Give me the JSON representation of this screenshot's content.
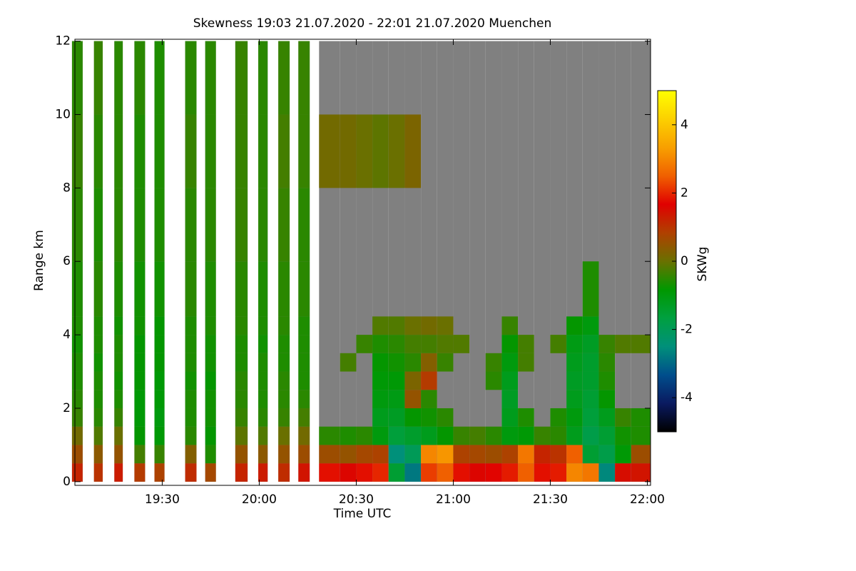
{
  "chart_data": {
    "type": "heatmap",
    "title": "Skewness   19:03 21.07.2020 - 22:01 21.07.2020 Muenchen",
    "x_label": "Time UTC",
    "y_label": "Range km",
    "colorbar_label": "SKWg",
    "xlim": [
      1143,
      1321
    ],
    "xticks": [
      {
        "value": 1170,
        "label": "19:30"
      },
      {
        "value": 1200,
        "label": "20:00"
      },
      {
        "value": 1230,
        "label": "20:30"
      },
      {
        "value": 1260,
        "label": "21:00"
      },
      {
        "value": 1290,
        "label": "21:30"
      },
      {
        "value": 1320,
        "label": "22:00"
      }
    ],
    "ylim": [
      -0.1,
      12.05
    ],
    "yticks": [
      0,
      2,
      4,
      6,
      8,
      10,
      12
    ],
    "clim": [
      -5,
      5
    ],
    "cticks": [
      -4,
      -2,
      0,
      2,
      4
    ],
    "colormap": [
      "#000000",
      "#0a1a60",
      "#004e8c",
      "#00907a",
      "#00a040",
      "#009800",
      "#6a7000",
      "#b04000",
      "#e00000",
      "#f06000",
      "#f8a000",
      "#fcd000",
      "#ffff00"
    ],
    "nodata_color": "#808080",
    "y_edges": [
      0,
      0.5,
      1,
      1.5,
      2,
      2.5,
      3,
      3.5,
      4,
      4.5,
      6,
      8,
      10,
      12
    ],
    "columns": [
      {
        "start": 1142.1,
        "end": 1145.4,
        "values": [
          1.2,
          0.6,
          0.1,
          -0.4,
          -0.5,
          -0.6,
          -0.6,
          -0.7,
          -0.6,
          -0.6,
          -0.5,
          -0.4,
          -0.5
        ]
      },
      {
        "start": 1148.9,
        "end": 1151.6,
        "values": [
          1.0,
          0.4,
          -0.2,
          -0.5,
          -0.6,
          -0.6,
          -0.7,
          -0.6,
          -0.6,
          -0.5,
          -0.6,
          -0.5,
          -0.4
        ]
      },
      {
        "start": 1155.2,
        "end": 1157.8,
        "values": [
          1.3,
          0.5,
          0.0,
          -0.4,
          -0.6,
          -0.7,
          -0.6,
          -0.6,
          -0.7,
          -0.6,
          -0.5,
          -0.5,
          -0.5
        ]
      },
      {
        "start": 1161.4,
        "end": 1164.7,
        "values": [
          0.9,
          -0.3,
          -0.8,
          -0.9,
          -0.9,
          -0.8,
          -0.8,
          -0.8,
          -0.7,
          -0.7,
          -0.6,
          -0.6,
          -0.5
        ]
      },
      {
        "start": 1167.6,
        "end": 1170.7,
        "values": [
          0.8,
          -0.4,
          -0.9,
          -1.0,
          -0.9,
          -0.9,
          -0.8,
          -0.8,
          -0.8,
          -0.7,
          -0.6,
          -0.6,
          -0.6
        ]
      },
      {
        "start": 1177.1,
        "end": 1180.6,
        "values": [
          1.1,
          0.3,
          -0.5,
          -0.6,
          -0.6,
          -0.7,
          -0.6,
          -0.6,
          -0.6,
          -0.5,
          -0.5,
          -0.4,
          -0.5
        ]
      },
      {
        "start": 1183.3,
        "end": 1186.6,
        "values": [
          0.7,
          -0.6,
          -0.8,
          -0.7,
          -0.7,
          -0.8,
          -0.7,
          -0.7,
          -0.6,
          -0.6,
          -0.5,
          -0.5,
          -0.5
        ]
      },
      {
        "start": 1192.6,
        "end": 1196.4,
        "values": [
          1.2,
          0.5,
          -0.1,
          -0.4,
          -0.5,
          -0.5,
          -0.6,
          -0.6,
          -0.5,
          -0.5,
          -0.4,
          -0.4,
          -0.4
        ]
      },
      {
        "start": 1199.7,
        "end": 1202.6,
        "values": [
          1.3,
          0.4,
          -0.2,
          -0.5,
          -0.6,
          -0.6,
          -0.6,
          -0.7,
          -0.6,
          -0.6,
          -0.5,
          -0.5,
          -0.5
        ]
      },
      {
        "start": 1205.9,
        "end": 1209.4,
        "values": [
          1.1,
          0.5,
          0.0,
          -0.4,
          -0.5,
          -0.5,
          -0.6,
          -0.6,
          -0.5,
          -0.5,
          -0.4,
          -0.3,
          -0.4
        ]
      },
      {
        "start": 1212.1,
        "end": 1215.6,
        "values": [
          1.4,
          0.6,
          0.1,
          -0.3,
          -0.5,
          -0.6,
          -0.6,
          -0.6,
          -0.6,
          -0.5,
          -0.5,
          -0.4,
          -0.4
        ]
      },
      {
        "start": 1218.5,
        "end": 1225,
        "values": [
          1.8,
          0.6,
          -0.5,
          null,
          null,
          null,
          null,
          null,
          null,
          null,
          null,
          0.1,
          null
        ]
      },
      {
        "start": 1225,
        "end": 1230,
        "values": [
          1.6,
          0.5,
          -0.6,
          null,
          null,
          null,
          -0.3,
          null,
          null,
          null,
          null,
          0.1,
          null
        ]
      },
      {
        "start": 1230,
        "end": 1235,
        "values": [
          1.8,
          0.7,
          -0.5,
          null,
          null,
          null,
          null,
          -0.4,
          null,
          null,
          null,
          0.0,
          null
        ]
      },
      {
        "start": 1235,
        "end": 1240,
        "values": [
          2.0,
          0.8,
          -1.0,
          -1.2,
          -1.0,
          -0.9,
          -0.8,
          -0.6,
          -0.2,
          null,
          null,
          -0.1,
          null
        ]
      },
      {
        "start": 1240,
        "end": 1245,
        "values": [
          -1.5,
          -2.5,
          -1.6,
          -1.3,
          -1.1,
          -0.9,
          -0.7,
          -0.5,
          -0.2,
          null,
          null,
          0.0,
          null
        ]
      },
      {
        "start": 1245,
        "end": 1250,
        "values": [
          -2.8,
          -2.0,
          -1.4,
          -0.8,
          0.5,
          0.2,
          -0.5,
          -0.3,
          0.0,
          null,
          null,
          0.2,
          null
        ]
      },
      {
        "start": 1250,
        "end": 1255,
        "values": [
          2.2,
          3.0,
          -1.2,
          -0.7,
          -0.5,
          0.9,
          0.3,
          -0.3,
          0.1,
          null,
          null,
          null,
          null
        ]
      },
      {
        "start": 1255,
        "end": 1260,
        "values": [
          2.5,
          3.2,
          -0.8,
          -0.5,
          null,
          null,
          -0.4,
          -0.2,
          0.0,
          null,
          null,
          null,
          null
        ]
      },
      {
        "start": 1260,
        "end": 1265,
        "values": [
          1.8,
          0.8,
          -0.4,
          null,
          null,
          null,
          null,
          -0.2,
          null,
          null,
          null,
          null,
          null
        ]
      },
      {
        "start": 1265,
        "end": 1270,
        "values": [
          1.6,
          0.7,
          -0.3,
          null,
          null,
          null,
          null,
          null,
          null,
          null,
          null,
          null,
          null
        ]
      },
      {
        "start": 1270,
        "end": 1275,
        "values": [
          1.7,
          0.6,
          -0.5,
          null,
          null,
          -0.5,
          -0.4,
          null,
          null,
          null,
          null,
          null,
          null
        ]
      },
      {
        "start": 1275,
        "end": 1280,
        "values": [
          1.9,
          0.8,
          -1.0,
          -1.2,
          -1.3,
          -1.2,
          -1.0,
          -0.8,
          -0.4,
          null,
          null,
          null,
          null
        ]
      },
      {
        "start": 1280,
        "end": 1285,
        "values": [
          2.5,
          2.8,
          -0.9,
          -0.6,
          null,
          null,
          -0.3,
          -0.3,
          null,
          null,
          null,
          null,
          null
        ]
      },
      {
        "start": 1285,
        "end": 1290,
        "values": [
          1.8,
          1.2,
          -0.4,
          null,
          null,
          null,
          null,
          null,
          null,
          null,
          null,
          null,
          null
        ]
      },
      {
        "start": 1290,
        "end": 1295,
        "values": [
          1.9,
          1.0,
          -0.5,
          -0.6,
          null,
          null,
          null,
          -0.3,
          null,
          null,
          null,
          null,
          null
        ]
      },
      {
        "start": 1295,
        "end": 1300,
        "values": [
          3.0,
          2.5,
          -1.2,
          -1.0,
          -1.2,
          -1.3,
          -1.2,
          -1.1,
          -0.8,
          null,
          null,
          null,
          null
        ]
      },
      {
        "start": 1300,
        "end": 1305,
        "values": [
          2.8,
          -1.5,
          -1.8,
          -1.6,
          -1.5,
          -1.4,
          -1.4,
          -1.3,
          -1.0,
          -0.6,
          null,
          null,
          null
        ]
      },
      {
        "start": 1305,
        "end": 1310,
        "values": [
          -2.6,
          -1.8,
          -1.5,
          -1.2,
          -0.8,
          -0.6,
          -0.5,
          -0.4,
          null,
          null,
          null,
          null,
          null
        ]
      },
      {
        "start": 1310,
        "end": 1315,
        "values": [
          1.5,
          -0.9,
          -0.7,
          -0.4,
          null,
          null,
          null,
          -0.2,
          null,
          null,
          null,
          null,
          null
        ]
      },
      {
        "start": 1315,
        "end": 1320.9,
        "values": [
          1.4,
          0.6,
          -0.6,
          -0.6,
          null,
          null,
          null,
          -0.2,
          null,
          null,
          null,
          null,
          null
        ]
      }
    ]
  }
}
